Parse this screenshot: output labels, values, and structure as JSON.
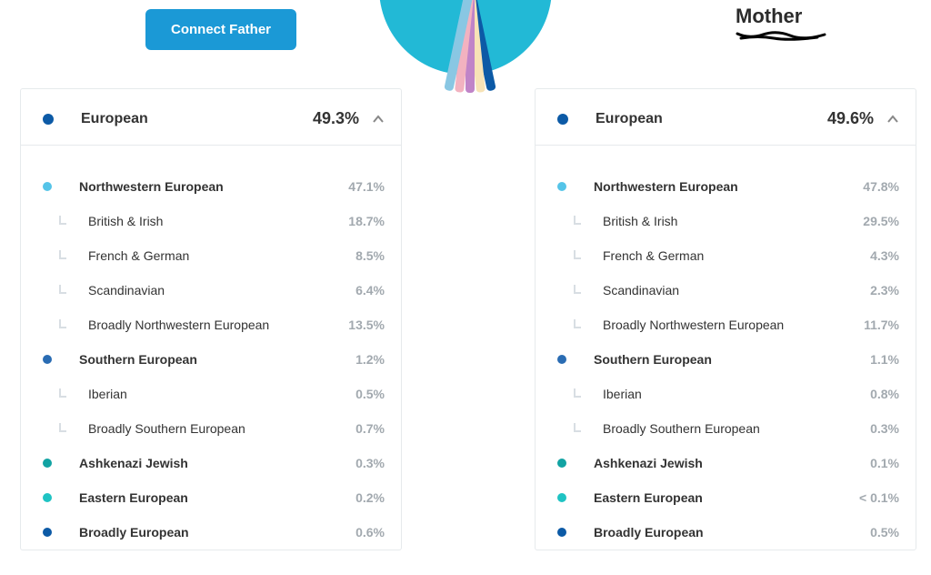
{
  "colors": {
    "button_bg": "#1b99d6",
    "circle_bg": "#22b9d6",
    "petals": [
      "#0c5aa6",
      "#f7e3b6",
      "#c084c8",
      "#f2b2c0",
      "#89c7e3"
    ],
    "dot_navy": "#0c5aa6",
    "dot_sky": "#55c4e8",
    "dot_midblue": "#2a6cb3",
    "dot_teal": "#12a3a3",
    "dot_cyan": "#1fc3c3",
    "text_grey": "#a2a9af"
  },
  "top": {
    "button_label": "Connect Father",
    "mother_label": "Mother"
  },
  "father": {
    "header": {
      "label": "European",
      "pct": "49.3%",
      "dot_color_key": "dot_navy"
    },
    "rows": [
      {
        "level": 1,
        "glyph": "dot",
        "color_key": "dot_sky",
        "label": "Northwestern European",
        "pct": "47.1%"
      },
      {
        "level": 2,
        "glyph": "elbow",
        "label": "British & Irish",
        "pct": "18.7%"
      },
      {
        "level": 2,
        "glyph": "elbow",
        "label": "French & German",
        "pct": "8.5%"
      },
      {
        "level": 2,
        "glyph": "elbow",
        "label": "Scandinavian",
        "pct": "6.4%"
      },
      {
        "level": 2,
        "glyph": "elbow",
        "label": "Broadly Northwestern European",
        "pct": "13.5%"
      },
      {
        "level": 1,
        "glyph": "dot",
        "color_key": "dot_midblue",
        "label": "Southern European",
        "pct": "1.2%"
      },
      {
        "level": 2,
        "glyph": "elbow",
        "label": "Iberian",
        "pct": "0.5%"
      },
      {
        "level": 2,
        "glyph": "elbow",
        "label": "Broadly Southern European",
        "pct": "0.7%"
      },
      {
        "level": 1,
        "glyph": "dot",
        "color_key": "dot_teal",
        "label": "Ashkenazi Jewish",
        "pct": "0.3%"
      },
      {
        "level": 1,
        "glyph": "dot",
        "color_key": "dot_cyan",
        "label": "Eastern European",
        "pct": "0.2%"
      },
      {
        "level": 1,
        "glyph": "dot",
        "color_key": "dot_navy",
        "label": "Broadly European",
        "pct": "0.6%"
      }
    ]
  },
  "mother": {
    "header": {
      "label": "European",
      "pct": "49.6%",
      "dot_color_key": "dot_navy"
    },
    "rows": [
      {
        "level": 1,
        "glyph": "dot",
        "color_key": "dot_sky",
        "label": "Northwestern European",
        "pct": "47.8%"
      },
      {
        "level": 2,
        "glyph": "elbow",
        "label": "British & Irish",
        "pct": "29.5%"
      },
      {
        "level": 2,
        "glyph": "elbow",
        "label": "French & German",
        "pct": "4.3%"
      },
      {
        "level": 2,
        "glyph": "elbow",
        "label": "Scandinavian",
        "pct": "2.3%"
      },
      {
        "level": 2,
        "glyph": "elbow",
        "label": "Broadly Northwestern European",
        "pct": "11.7%"
      },
      {
        "level": 1,
        "glyph": "dot",
        "color_key": "dot_midblue",
        "label": "Southern European",
        "pct": "1.1%"
      },
      {
        "level": 2,
        "glyph": "elbow",
        "label": "Iberian",
        "pct": "0.8%"
      },
      {
        "level": 2,
        "glyph": "elbow",
        "label": "Broadly Southern European",
        "pct": "0.3%"
      },
      {
        "level": 1,
        "glyph": "dot",
        "color_key": "dot_teal",
        "label": "Ashkenazi Jewish",
        "pct": "0.1%"
      },
      {
        "level": 1,
        "glyph": "dot",
        "color_key": "dot_cyan",
        "label": "Eastern European",
        "pct": "< 0.1%"
      },
      {
        "level": 1,
        "glyph": "dot",
        "color_key": "dot_navy",
        "label": "Broadly European",
        "pct": "0.5%"
      }
    ]
  }
}
